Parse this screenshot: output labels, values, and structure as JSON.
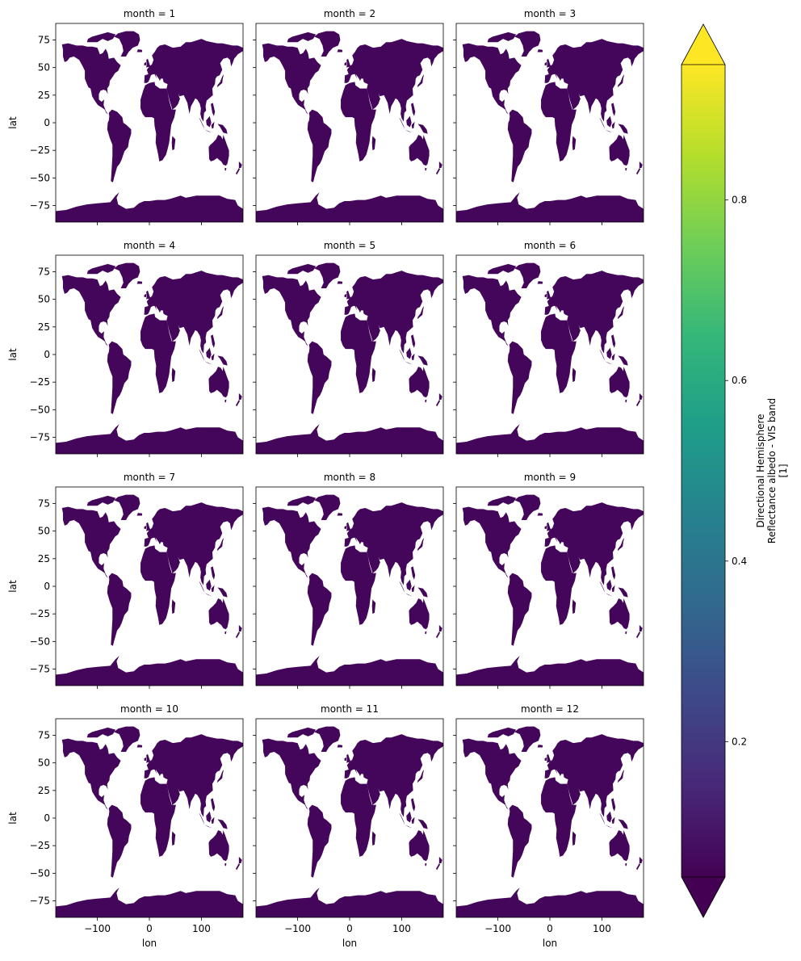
{
  "chart_data": {
    "type": "heatmap",
    "layout": "facet-grid",
    "facet_variable": "month",
    "facet_label_template": "month = {v}",
    "facets": [
      1,
      2,
      3,
      4,
      5,
      6,
      7,
      8,
      9,
      10,
      11,
      12
    ],
    "ncols": 3,
    "xlabel": "lon",
    "ylabel": "lat",
    "xlim": [
      -180,
      180
    ],
    "ylim": [
      -90,
      90
    ],
    "x_ticks": [
      -100,
      0,
      100
    ],
    "x_tick_labels": [
      "−100",
      "0",
      "100"
    ],
    "y_ticks": [
      75,
      50,
      25,
      0,
      -25,
      -50,
      -75
    ],
    "y_tick_labels": [
      "75",
      "50",
      "25",
      "0",
      "−25",
      "−50",
      "−75"
    ],
    "grid": false,
    "colorbar": {
      "label_lines": [
        "Directional Hemisphere",
        "Reflectance albedo - VIS band",
        "[1]"
      ],
      "ticks": [
        0.2,
        0.4,
        0.6,
        0.8
      ],
      "tick_labels": [
        "0.2",
        "0.4",
        "0.6",
        "0.8"
      ],
      "range": [
        0.05,
        0.95
      ],
      "extend": "both",
      "colormap": "viridis",
      "colors": [
        "#440154",
        "#482878",
        "#3e4989",
        "#31688e",
        "#26828e",
        "#1f9e89",
        "#35b779",
        "#6ece58",
        "#b5de2b",
        "#fde725"
      ]
    }
  }
}
